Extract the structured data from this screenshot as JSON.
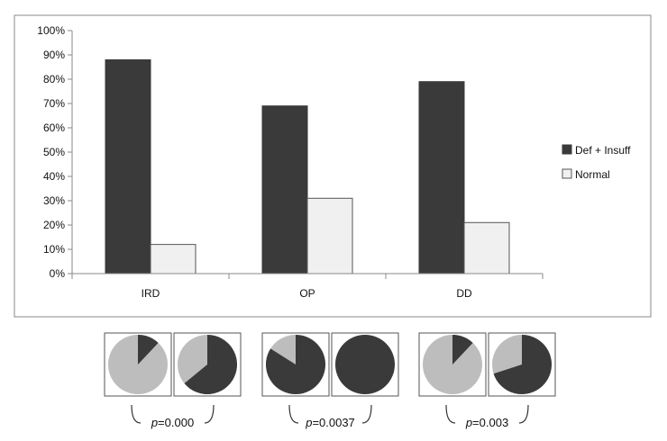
{
  "chart_data": [
    {
      "type": "bar",
      "categories": [
        "IRD",
        "OP",
        "DD"
      ],
      "series": [
        {
          "name": "Def + Insuff",
          "values": [
            88,
            69,
            79
          ],
          "color": "#3a3a3a"
        },
        {
          "name": "Normal",
          "values": [
            12,
            31,
            21
          ],
          "color": "#f0f0f0"
        }
      ],
      "ylim": [
        0,
        100
      ],
      "yticks": [
        "0%",
        "10%",
        "20%",
        "30%",
        "40%",
        "50%",
        "60%",
        "70%",
        "80%",
        "90%",
        "100%"
      ],
      "grid": false,
      "legend_position": "right"
    },
    {
      "type": "pie",
      "groups": [
        {
          "p_prefix": "p",
          "p_value": "=0.000",
          "pies": [
            {
              "dark_fraction": 0.12
            },
            {
              "dark_fraction": 0.64
            }
          ]
        },
        {
          "p_prefix": "p",
          "p_value": "=0.0037",
          "pies": [
            {
              "dark_fraction": 0.84
            },
            {
              "dark_fraction": 1.0
            }
          ]
        },
        {
          "p_prefix": "p",
          "p_value": "=0.003",
          "pies": [
            {
              "dark_fraction": 0.12
            },
            {
              "dark_fraction": 0.7
            }
          ]
        }
      ],
      "colors": {
        "dark": "#3a3a3a",
        "light": "#bdbdbd"
      }
    }
  ]
}
